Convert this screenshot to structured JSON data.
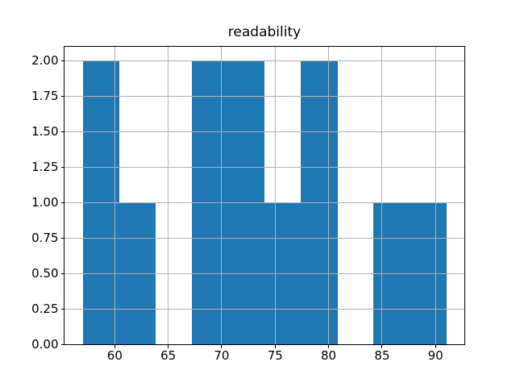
{
  "chart_data": {
    "type": "bar",
    "subtype": "histogram",
    "title": "readability",
    "xlabel": "",
    "ylabel": "",
    "grid": true,
    "legend": null,
    "bar_color": "#1f77b4",
    "grid_color": "#b0b0b0",
    "spine_color": "#000000",
    "background_color": "#ffffff",
    "xlim": [
      55.3,
      92.7
    ],
    "ylim": [
      0,
      2.1
    ],
    "xticks": [
      60,
      65,
      70,
      75,
      80,
      85,
      90
    ],
    "xtick_labels": [
      "60",
      "65",
      "70",
      "75",
      "80",
      "85",
      "90"
    ],
    "yticks": [
      0,
      0.25,
      0.5,
      0.75,
      1,
      1.25,
      1.5,
      1.75,
      2
    ],
    "ytick_labels": [
      "0.00",
      "0.25",
      "0.50",
      "0.75",
      "1.00",
      "1.25",
      "1.50",
      "1.75",
      "2.00"
    ],
    "bins": {
      "edges": [
        57.0,
        60.4,
        63.8,
        67.2,
        70.6,
        74.0,
        77.4,
        80.8,
        84.2,
        87.6,
        91.0
      ],
      "counts": [
        2,
        1,
        0,
        2,
        2,
        1,
        2,
        0,
        1,
        1
      ]
    }
  }
}
